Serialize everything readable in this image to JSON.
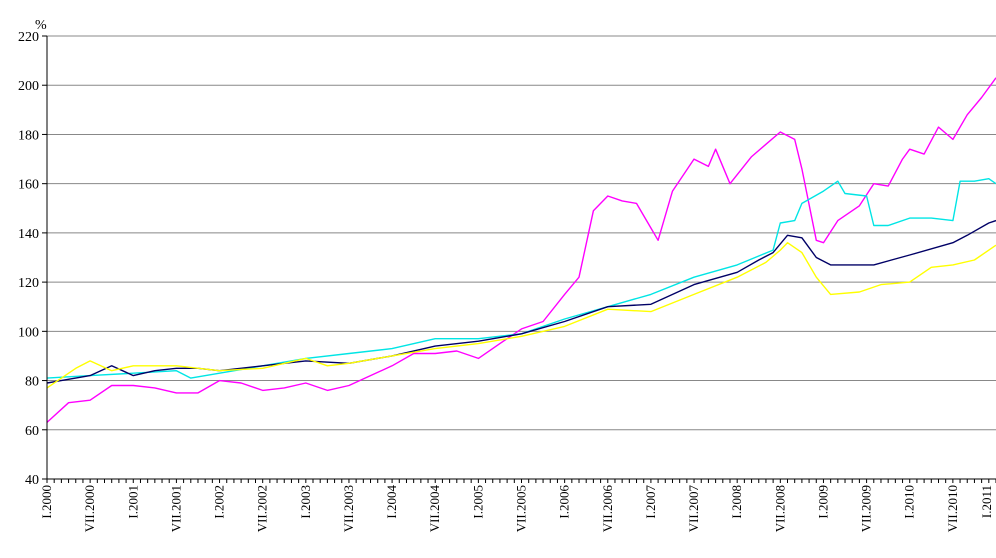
{
  "chart_data": {
    "type": "line",
    "ylabel": "%",
    "ylim": [
      40,
      220
    ],
    "yticks": [
      40,
      60,
      80,
      100,
      120,
      140,
      160,
      180,
      200,
      220
    ],
    "grid": "horizontal",
    "legend": "none",
    "x_start_month": "2000-01",
    "x_end_month": "2011-01",
    "xtick_labels": [
      "I.2000",
      "VII.2000",
      "I.2001",
      "VII.2001",
      "I.2002",
      "VII.2002",
      "I.2003",
      "VII.2003",
      "I.2004",
      "VII.2004",
      "I.2005",
      "VII.2005",
      "I.2006",
      "VII.2006",
      "I.2007",
      "VII.2007",
      "I.2008",
      "VII.2008",
      "I.2009",
      "VII.2009",
      "I.2010",
      "VII.2010",
      "I.2011"
    ],
    "series": [
      {
        "color": "#ff00ff",
        "points": [
          [
            "2000-01",
            63
          ],
          [
            "2000-04",
            71
          ],
          [
            "2000-07",
            72
          ],
          [
            "2000-10",
            78
          ],
          [
            "2001-01",
            78
          ],
          [
            "2001-04",
            77
          ],
          [
            "2001-07",
            75
          ],
          [
            "2001-10",
            75
          ],
          [
            "2002-01",
            80
          ],
          [
            "2002-04",
            79
          ],
          [
            "2002-07",
            76
          ],
          [
            "2002-10",
            77
          ],
          [
            "2003-01",
            79
          ],
          [
            "2003-04",
            76
          ],
          [
            "2003-07",
            78
          ],
          [
            "2003-10",
            82
          ],
          [
            "2004-01",
            86
          ],
          [
            "2004-04",
            91
          ],
          [
            "2004-07",
            91
          ],
          [
            "2004-10",
            92
          ],
          [
            "2005-01",
            89
          ],
          [
            "2005-04",
            95
          ],
          [
            "2005-07",
            101
          ],
          [
            "2005-10",
            104
          ],
          [
            "2006-01",
            115
          ],
          [
            "2006-03",
            122
          ],
          [
            "2006-05",
            149
          ],
          [
            "2006-07",
            155
          ],
          [
            "2006-09",
            153
          ],
          [
            "2006-11",
            152
          ],
          [
            "2007-01",
            142
          ],
          [
            "2007-02",
            137
          ],
          [
            "2007-04",
            157
          ],
          [
            "2007-07",
            170
          ],
          [
            "2007-09",
            167
          ],
          [
            "2007-10",
            174
          ],
          [
            "2007-12",
            160
          ],
          [
            "2008-03",
            171
          ],
          [
            "2008-05",
            176
          ],
          [
            "2008-07",
            181
          ],
          [
            "2008-09",
            178
          ],
          [
            "2008-10",
            166
          ],
          [
            "2008-12",
            137
          ],
          [
            "2009-01",
            136
          ],
          [
            "2009-03",
            145
          ],
          [
            "2009-06",
            151
          ],
          [
            "2009-08",
            160
          ],
          [
            "2009-10",
            159
          ],
          [
            "2009-12",
            170
          ],
          [
            "2010-01",
            174
          ],
          [
            "2010-03",
            172
          ],
          [
            "2010-05",
            183
          ],
          [
            "2010-07",
            178
          ],
          [
            "2010-09",
            188
          ],
          [
            "2010-11",
            195
          ],
          [
            "2011-01",
            203
          ]
        ]
      },
      {
        "color": "#00e5e5",
        "points": [
          [
            "2000-01",
            81
          ],
          [
            "2000-07",
            82
          ],
          [
            "2001-01",
            83
          ],
          [
            "2001-07",
            84
          ],
          [
            "2001-09",
            81
          ],
          [
            "2002-01",
            83
          ],
          [
            "2002-07",
            86
          ],
          [
            "2003-01",
            89
          ],
          [
            "2003-07",
            91
          ],
          [
            "2004-01",
            93
          ],
          [
            "2004-07",
            97
          ],
          [
            "2005-01",
            97
          ],
          [
            "2005-07",
            99
          ],
          [
            "2006-01",
            105
          ],
          [
            "2006-07",
            110
          ],
          [
            "2007-01",
            115
          ],
          [
            "2007-07",
            122
          ],
          [
            "2008-01",
            127
          ],
          [
            "2008-06",
            133
          ],
          [
            "2008-07",
            144
          ],
          [
            "2008-09",
            145
          ],
          [
            "2008-10",
            152
          ],
          [
            "2009-01",
            157
          ],
          [
            "2009-03",
            161
          ],
          [
            "2009-04",
            156
          ],
          [
            "2009-07",
            155
          ],
          [
            "2009-08",
            143
          ],
          [
            "2009-10",
            143
          ],
          [
            "2010-01",
            146
          ],
          [
            "2010-04",
            146
          ],
          [
            "2010-07",
            145
          ],
          [
            "2010-08",
            161
          ],
          [
            "2010-10",
            161
          ],
          [
            "2010-12",
            162
          ],
          [
            "2011-01",
            160
          ]
        ]
      },
      {
        "color": "#000066",
        "points": [
          [
            "2000-01",
            79
          ],
          [
            "2000-07",
            82
          ],
          [
            "2000-10",
            86
          ],
          [
            "2001-01",
            82
          ],
          [
            "2001-04",
            84
          ],
          [
            "2001-07",
            85
          ],
          [
            "2001-10",
            85
          ],
          [
            "2002-01",
            84
          ],
          [
            "2002-07",
            86
          ],
          [
            "2003-01",
            88
          ],
          [
            "2003-07",
            87
          ],
          [
            "2004-01",
            90
          ],
          [
            "2004-07",
            94
          ],
          [
            "2005-01",
            96
          ],
          [
            "2005-07",
            99
          ],
          [
            "2006-01",
            104
          ],
          [
            "2006-07",
            110
          ],
          [
            "2007-01",
            111
          ],
          [
            "2007-07",
            119
          ],
          [
            "2008-01",
            124
          ],
          [
            "2008-04",
            129
          ],
          [
            "2008-06",
            132
          ],
          [
            "2008-08",
            139
          ],
          [
            "2008-10",
            138
          ],
          [
            "2008-12",
            130
          ],
          [
            "2009-02",
            127
          ],
          [
            "2009-05",
            127
          ],
          [
            "2009-08",
            127
          ],
          [
            "2010-01",
            131
          ],
          [
            "2010-07",
            136
          ],
          [
            "2010-09",
            139
          ],
          [
            "2010-12",
            144
          ],
          [
            "2011-01",
            145
          ]
        ]
      },
      {
        "color": "#ffff00",
        "points": [
          [
            "2000-01",
            77
          ],
          [
            "2000-05",
            85
          ],
          [
            "2000-07",
            88
          ],
          [
            "2000-10",
            84
          ],
          [
            "2001-01",
            86
          ],
          [
            "2001-07",
            86
          ],
          [
            "2002-01",
            84
          ],
          [
            "2002-07",
            85
          ],
          [
            "2003-01",
            89
          ],
          [
            "2003-04",
            86
          ],
          [
            "2003-07",
            87
          ],
          [
            "2004-01",
            90
          ],
          [
            "2004-07",
            93
          ],
          [
            "2005-01",
            95
          ],
          [
            "2005-07",
            98
          ],
          [
            "2006-01",
            102
          ],
          [
            "2006-07",
            109
          ],
          [
            "2007-01",
            108
          ],
          [
            "2007-07",
            115
          ],
          [
            "2008-01",
            122
          ],
          [
            "2008-05",
            128
          ],
          [
            "2008-07",
            133
          ],
          [
            "2008-08",
            136
          ],
          [
            "2008-10",
            132
          ],
          [
            "2008-12",
            122
          ],
          [
            "2009-02",
            115
          ],
          [
            "2009-06",
            116
          ],
          [
            "2009-09",
            119
          ],
          [
            "2010-01",
            120
          ],
          [
            "2010-04",
            126
          ],
          [
            "2010-07",
            127
          ],
          [
            "2010-10",
            129
          ],
          [
            "2011-01",
            135
          ]
        ]
      }
    ]
  }
}
